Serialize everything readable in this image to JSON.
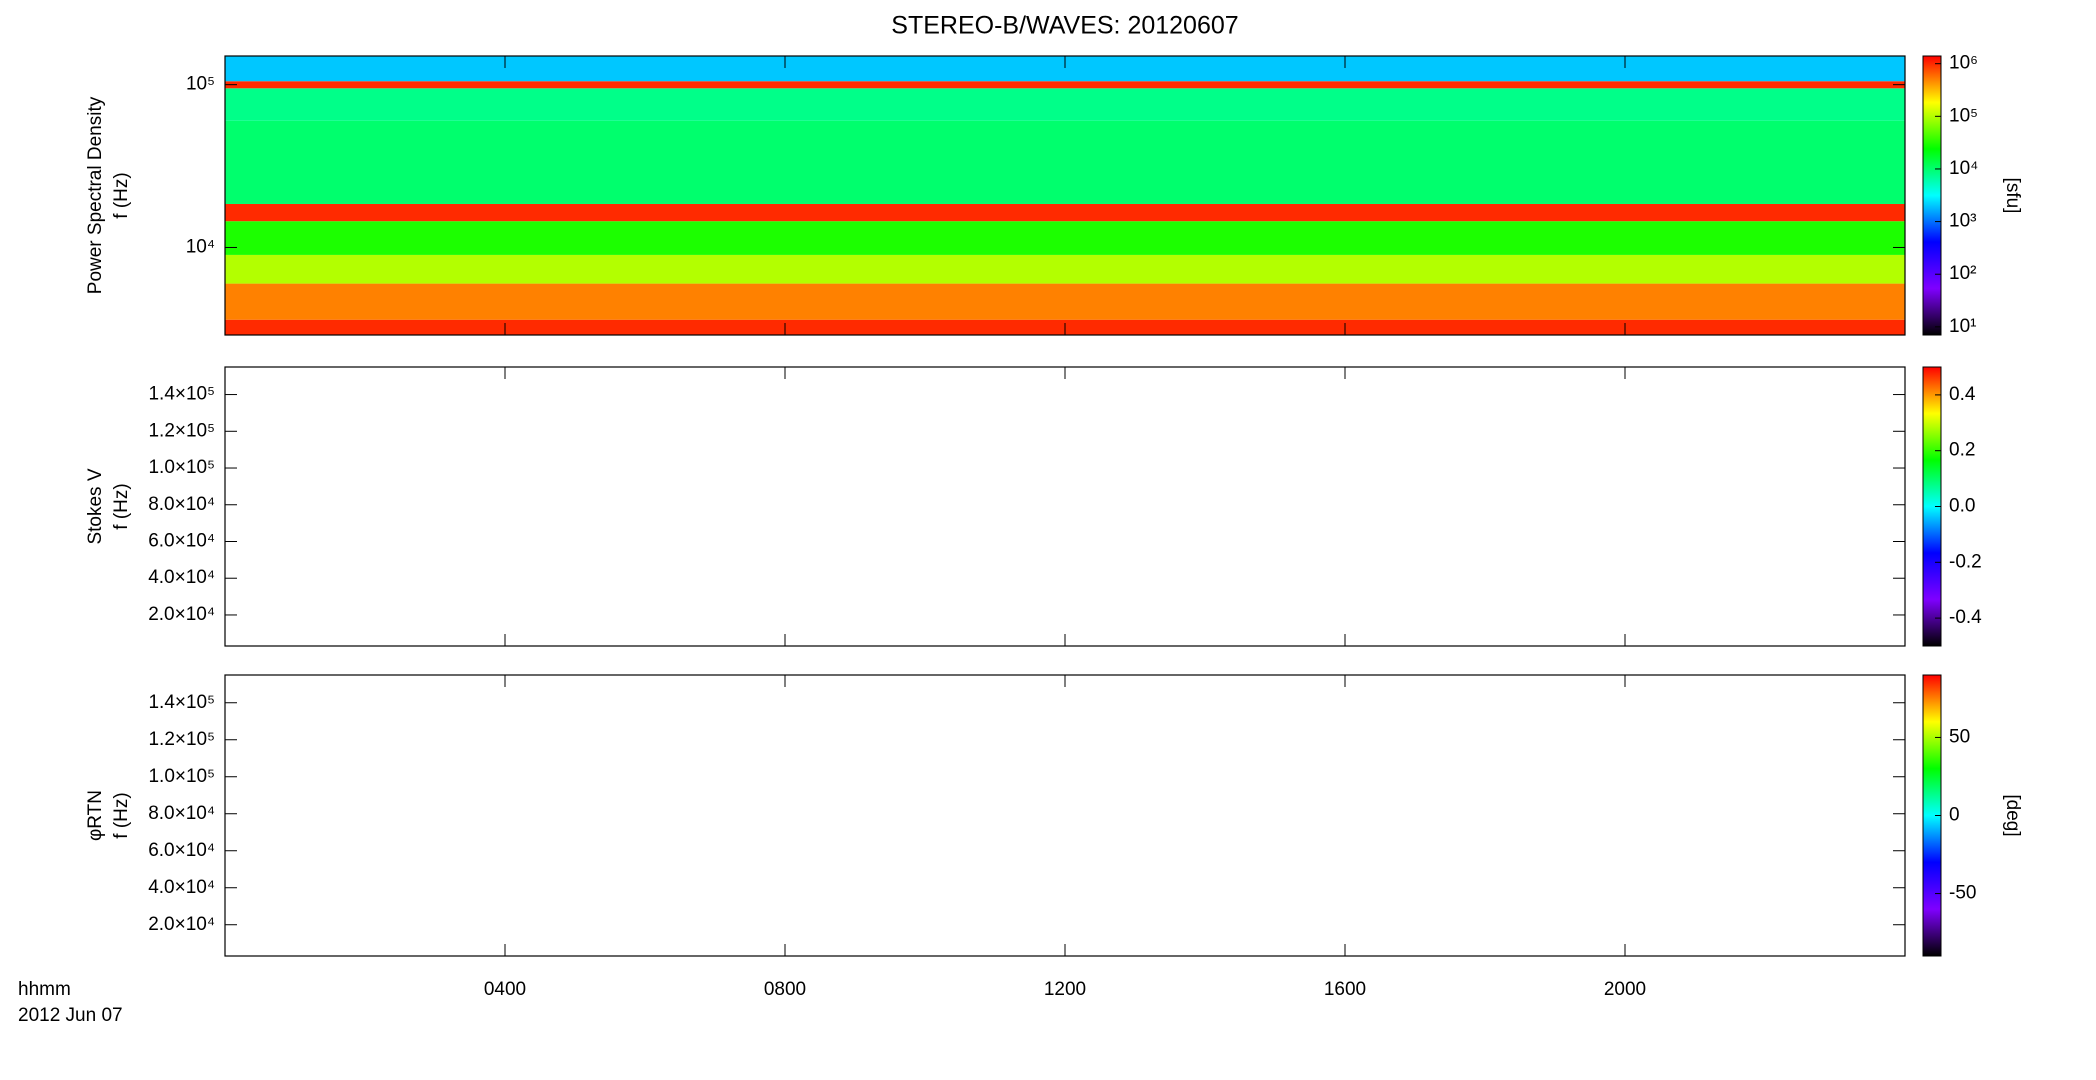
{
  "chart_data": [
    {
      "type": "heatmap",
      "title": "STEREO-B/WAVES: 20120607",
      "ylabel": [
        "Power Spectral Density",
        "f (Hz)"
      ],
      "xlim": [
        0,
        24
      ],
      "xticks": [
        4,
        8,
        12,
        16,
        20
      ],
      "ylog": true,
      "ylim": [
        2900,
        150000
      ],
      "yticks": [
        {
          "value": 10000,
          "label": "10⁴"
        },
        {
          "value": 100000,
          "label": "10⁵"
        }
      ],
      "y_edges": [
        2900,
        3600,
        6000,
        9000,
        14500,
        18500,
        60000,
        95000,
        105000,
        150000
      ],
      "values": [
        1000000,
        500000,
        100000,
        30000,
        1000000,
        10000,
        8000,
        1000000,
        2000
      ],
      "colorscale": [
        "#000000",
        "#7f00ff",
        "#0000ff",
        "#00ffff",
        "#00ff00",
        "#ffff00",
        "#ff0000"
      ],
      "colorbar": {
        "log": true,
        "clim": [
          7,
          1400000
        ],
        "label": "[sfu]",
        "ticks": [
          {
            "value": 10,
            "label": "10¹"
          },
          {
            "value": 100,
            "label": "10²"
          },
          {
            "value": 1000,
            "label": "10³"
          },
          {
            "value": 10000,
            "label": "10⁴"
          },
          {
            "value": 100000,
            "label": "10⁵"
          },
          {
            "value": 1000000,
            "label": "10⁶"
          }
        ]
      }
    },
    {
      "type": "heatmap",
      "ylabel": [
        "Stokes V",
        "f (Hz)"
      ],
      "xlim": [
        0,
        24
      ],
      "xticks": [
        4,
        8,
        12,
        16,
        20
      ],
      "ylim": [
        3100,
        155000
      ],
      "yticks": [
        {
          "value": 20000,
          "label": "2.0×10⁴"
        },
        {
          "value": 40000,
          "label": "4.0×10⁴"
        },
        {
          "value": 60000,
          "label": "6.0×10⁴"
        },
        {
          "value": 80000,
          "label": "8.0×10⁴"
        },
        {
          "value": 100000,
          "label": "1.0×10⁵"
        },
        {
          "value": 120000,
          "label": "1.2×10⁵"
        },
        {
          "value": 140000,
          "label": "1.4×10⁵"
        }
      ],
      "colorscale": [
        "#000000",
        "#7f00ff",
        "#0000ff",
        "#00ffff",
        "#00ff00",
        "#ffff00",
        "#ff0000"
      ],
      "colorbar": {
        "log": false,
        "clim": [
          -0.5,
          0.5
        ],
        "ticks": [
          -0.4,
          -0.2,
          {
            "value": 0,
            "label": "0.0"
          },
          0.2,
          0.4
        ]
      }
    },
    {
      "type": "heatmap",
      "ylabel": [
        "φRTN",
        "f (Hz)"
      ],
      "xlim": [
        0,
        24
      ],
      "xticks": [
        {
          "value": 4,
          "label": "0400"
        },
        {
          "value": 8,
          "label": "0800"
        },
        {
          "value": 12,
          "label": "1200"
        },
        {
          "value": 16,
          "label": "1600"
        },
        {
          "value": 20,
          "label": "2000"
        }
      ],
      "xlabel": "hhmm",
      "date": "2012 Jun 07",
      "ylim": [
        3100,
        155000
      ],
      "yticks": [
        {
          "value": 20000,
          "label": "2.0×10⁴"
        },
        {
          "value": 40000,
          "label": "4.0×10⁴"
        },
        {
          "value": 60000,
          "label": "6.0×10⁴"
        },
        {
          "value": 80000,
          "label": "8.0×10⁴"
        },
        {
          "value": 100000,
          "label": "1.0×10⁵"
        },
        {
          "value": 120000,
          "label": "1.2×10⁵"
        },
        {
          "value": 140000,
          "label": "1.4×10⁵"
        }
      ],
      "colorscale": [
        "#000000",
        "#7f00ff",
        "#0000ff",
        "#00ffff",
        "#00ff00",
        "#ffff00",
        "#ff0000"
      ],
      "colorbar": {
        "log": false,
        "clim": [
          -90,
          90
        ],
        "label": "[deg]",
        "ticks": [
          -50,
          0,
          50
        ]
      }
    }
  ]
}
